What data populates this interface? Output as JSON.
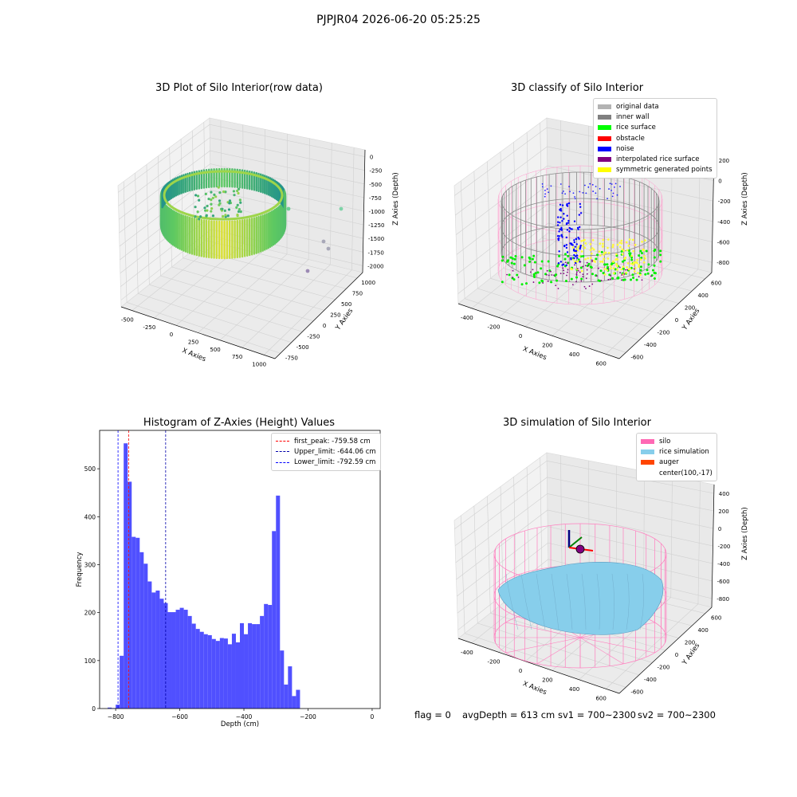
{
  "suptitle": "PJPJR04 2026-06-20 05:25:25",
  "footer": {
    "flag": "flag = 0",
    "avg": "avgDepth = 613 cm",
    "sv1": "sv1 = 700~2300",
    "sv2": "sv2 = 700~2300"
  },
  "chart_data": [
    {
      "type": "scatter",
      "title": "3D Plot of Silo Interior(row data)",
      "xlabel": "X Axies",
      "ylabel": "Y Axies",
      "zlabel": "Z Axies (Depth)",
      "x_ticks": [
        "-500",
        "-250",
        "0",
        "250",
        "500",
        "750",
        "1000"
      ],
      "y_ticks": [
        "-750",
        "-500",
        "-250",
        "0",
        "250",
        "500",
        "750",
        "1000"
      ],
      "z_ticks": [
        "0",
        "-250",
        "-500",
        "-750",
        "-1000",
        "-1250",
        "-1500",
        "-1750",
        "-2000"
      ],
      "colormap": "viridis"
    },
    {
      "type": "scatter",
      "title": "3D classify of Silo Interior",
      "xlabel": "X Axies",
      "ylabel": "Y Axies",
      "zlabel": "Z Axies (Depth)",
      "x_ticks": [
        "-400",
        "-200",
        "0",
        "200",
        "400",
        "600"
      ],
      "y_ticks": [
        "-600",
        "-400",
        "-200",
        "0",
        "200",
        "400",
        "600"
      ],
      "z_ticks": [
        "200",
        "0",
        "-200",
        "-400",
        "-600",
        "-800"
      ],
      "legend": [
        {
          "label": "original data",
          "color": "#b3b3b3"
        },
        {
          "label": "inner wall",
          "color": "#808080"
        },
        {
          "label": "rice surface",
          "color": "#00ff00"
        },
        {
          "label": "obstacle",
          "color": "#ff0000"
        },
        {
          "label": "noise",
          "color": "#0000ff"
        },
        {
          "label": "interpolated rice surface",
          "color": "#800080"
        },
        {
          "label": "symmetric generated points",
          "color": "#ffff00"
        }
      ]
    },
    {
      "type": "bar",
      "title": "Histogram of Z-Axies (Height) Values",
      "xlabel": "Depth (cm)",
      "ylabel": "Frequency",
      "bin_width": 12.5,
      "bin_start": -800,
      "values": [
        8,
        110,
        553,
        473,
        358,
        356,
        326,
        302,
        265,
        242,
        246,
        229,
        220,
        201,
        201,
        206,
        210,
        206,
        193,
        177,
        166,
        160,
        155,
        153,
        145,
        141,
        147,
        146,
        134,
        156,
        138,
        178,
        155,
        178,
        176,
        176,
        193,
        218,
        216,
        370,
        444,
        121,
        50,
        88,
        26,
        39
      ],
      "extra_bins": [
        {
          "x0": -825,
          "x1": -812.5,
          "value": 2
        },
        {
          "x0": -812.5,
          "x1": -800,
          "value": 1
        }
      ],
      "xlim": [
        -850,
        25
      ],
      "ylim": [
        0,
        580
      ],
      "x_ticks": [
        -800,
        -600,
        -400,
        -200,
        0
      ],
      "y_ticks": [
        0,
        100,
        200,
        300,
        400,
        500
      ],
      "bar_color": "#5050ff",
      "lines": [
        {
          "label": "first_peak: -759.58 cm",
          "x": -759.58,
          "color": "#ff0000"
        },
        {
          "label": "Upper_limit: -644.06 cm",
          "x": -644.06,
          "color": "#0000aa"
        },
        {
          "label": "Lower_limit: -792.59 cm",
          "x": -792.59,
          "color": "#0000ff"
        }
      ]
    },
    {
      "type": "scatter",
      "title": "3D simulation of Silo Interior",
      "xlabel": "X Axies",
      "ylabel": "Y Axies",
      "zlabel": "Z Axies (Depth)",
      "x_ticks": [
        "-400",
        "-200",
        "0",
        "200",
        "400",
        "600"
      ],
      "y_ticks": [
        "-600",
        "-400",
        "-200",
        "0",
        "200",
        "400",
        "600"
      ],
      "z_ticks": [
        "400",
        "200",
        "0",
        "-200",
        "-400",
        "-600",
        "-800"
      ],
      "legend": [
        {
          "label": "silo",
          "color": "#ff69b4"
        },
        {
          "label": "rice simulation",
          "color": "#87ceeb"
        },
        {
          "label": "auger",
          "color": "#ff4500"
        },
        {
          "label": "center(100,-17)",
          "color": ""
        }
      ]
    }
  ]
}
